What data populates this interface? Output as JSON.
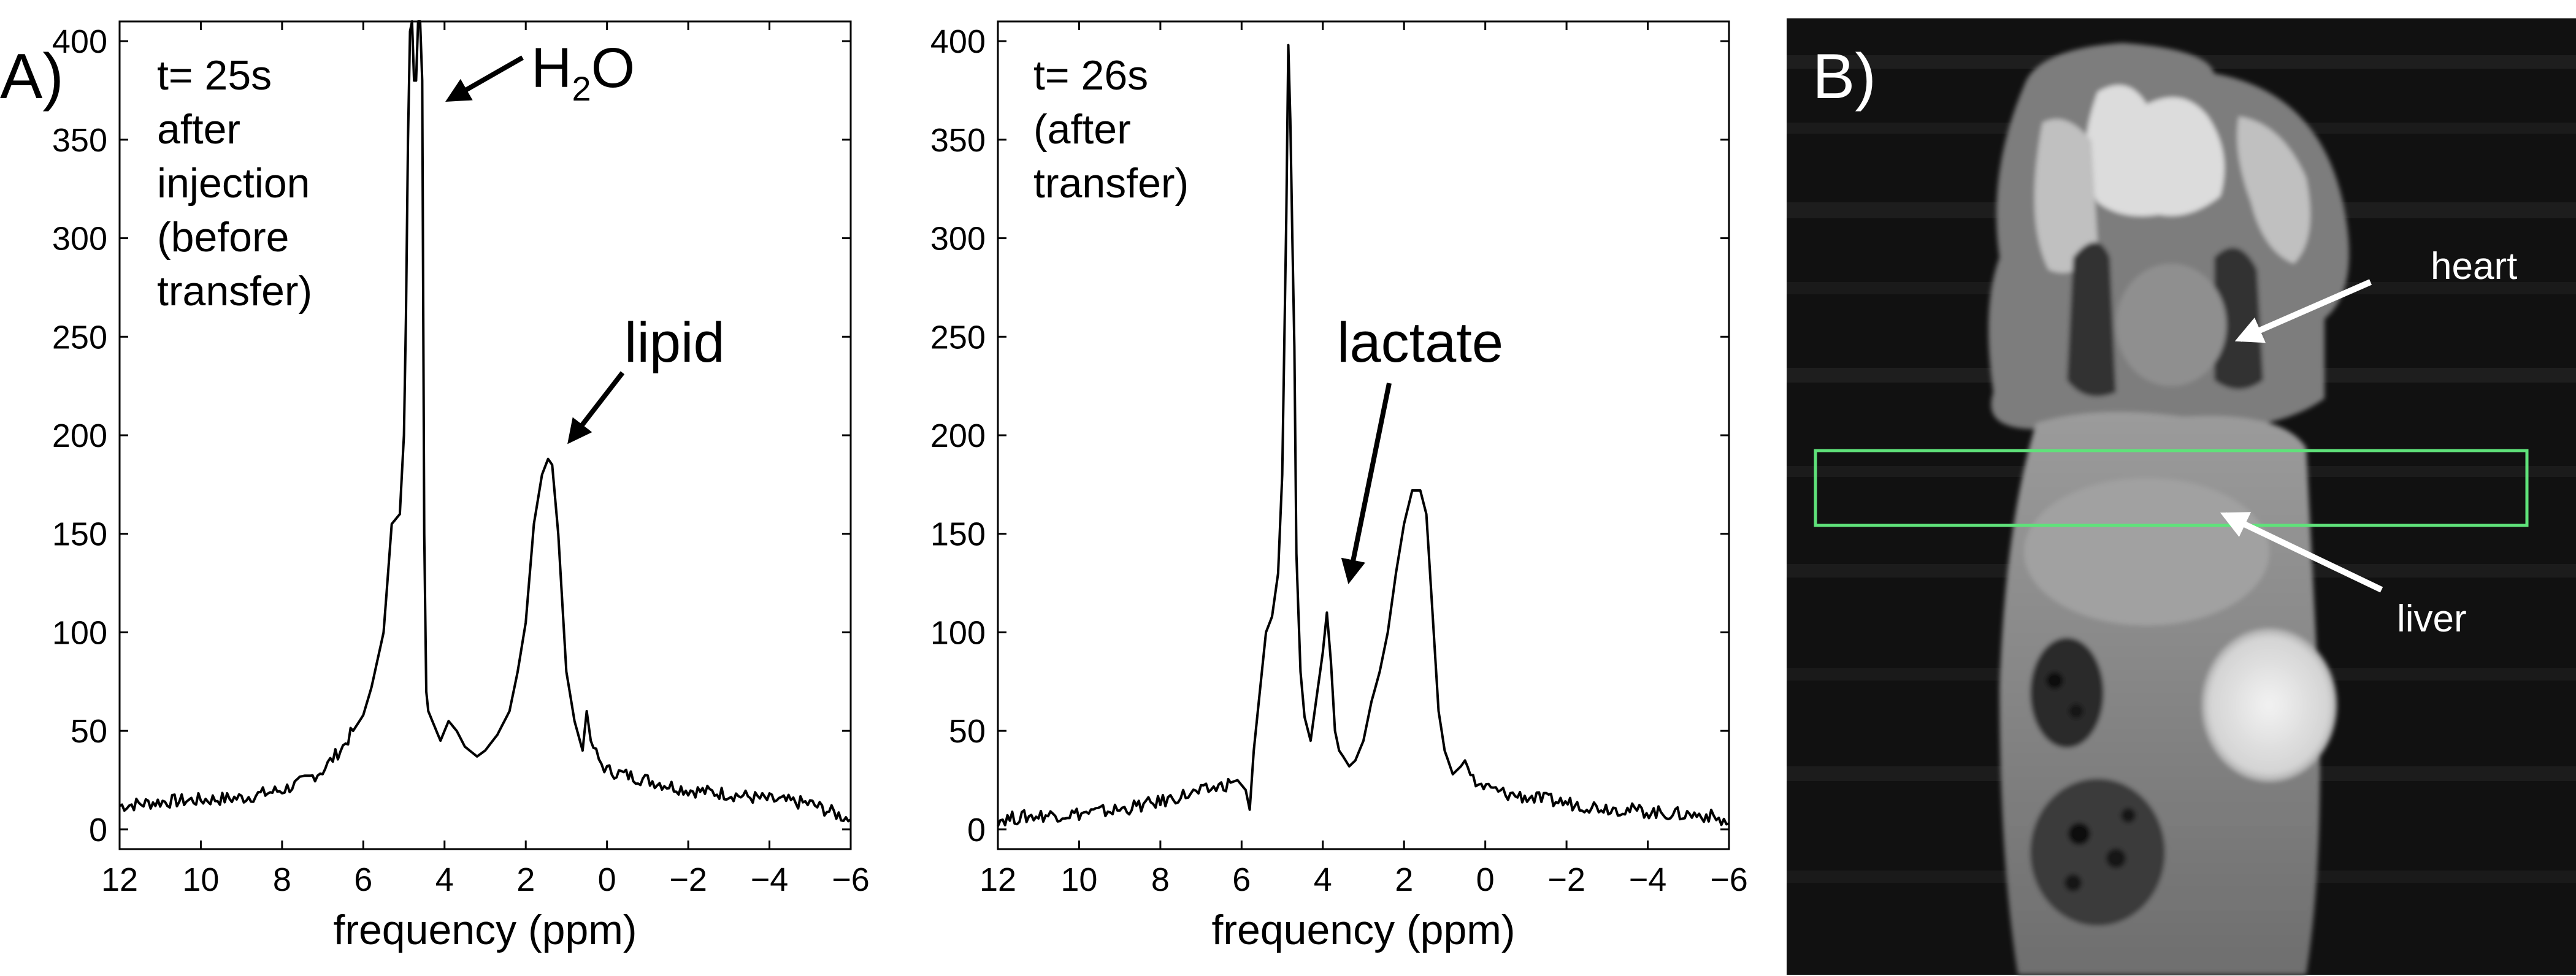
{
  "panel_a_label": "A)",
  "panel_b_label": "B)",
  "chart_data": [
    {
      "type": "line",
      "xlabel": "frequency (ppm)",
      "ylabel": "",
      "xlim": [
        12,
        -6
      ],
      "ylim": [
        -10,
        410
      ],
      "x_ticks": [
        12,
        10,
        8,
        6,
        4,
        2,
        0,
        -2,
        -4,
        -6
      ],
      "x_tick_labels": [
        "12",
        "10",
        "8",
        "6",
        "4",
        "2",
        "0",
        "−2",
        "−4",
        "−6"
      ],
      "y_ticks": [
        0,
        50,
        100,
        150,
        200,
        250,
        300,
        350,
        400
      ],
      "y_tick_labels": [
        "0",
        "50",
        "100",
        "150",
        "200",
        "250",
        "300",
        "350",
        "400"
      ],
      "annotation_lines": [
        "t= 25s",
        "after",
        "injection",
        "(before",
        "transfer)"
      ],
      "peak_labels": [
        {
          "text": "H",
          "sub": "2",
          "tail": "O"
        },
        {
          "text": "lipid"
        }
      ],
      "series": [
        {
          "x": [
            12,
            11,
            10,
            9,
            8,
            7.5,
            7,
            6.5,
            6,
            5.8,
            5.5,
            5.3,
            5.1,
            5.0,
            4.95,
            4.9,
            4.85,
            4.8,
            4.75,
            4.7,
            4.65,
            4.6,
            4.55,
            4.5,
            4.45,
            4.4,
            4.3,
            4.1,
            3.9,
            3.7,
            3.5,
            3.2,
            3.0,
            2.7,
            2.4,
            2.2,
            2.0,
            1.8,
            1.6,
            1.45,
            1.35,
            1.2,
            1.0,
            0.8,
            0.6,
            0.5,
            0.4,
            0.2,
            0,
            -1,
            -2,
            -3,
            -4,
            -5,
            -6
          ],
          "y": [
            12,
            14,
            15,
            16,
            20,
            24,
            30,
            42,
            58,
            72,
            100,
            155,
            160,
            200,
            260,
            350,
            405,
            410,
            380,
            380,
            410,
            410,
            380,
            150,
            70,
            60,
            55,
            45,
            55,
            50,
            42,
            37,
            40,
            48,
            60,
            80,
            105,
            155,
            180,
            188,
            185,
            150,
            80,
            55,
            40,
            60,
            45,
            35,
            30,
            25,
            20,
            18,
            15,
            13,
            5
          ]
        }
      ]
    },
    {
      "type": "line",
      "xlabel": "frequency (ppm)",
      "ylabel": "",
      "xlim": [
        12,
        -6
      ],
      "ylim": [
        -10,
        410
      ],
      "x_ticks": [
        12,
        10,
        8,
        6,
        4,
        2,
        0,
        -2,
        -4,
        -6
      ],
      "x_tick_labels": [
        "12",
        "10",
        "8",
        "6",
        "4",
        "2",
        "0",
        "−2",
        "−4",
        "−6"
      ],
      "y_ticks": [
        0,
        50,
        100,
        150,
        200,
        250,
        300,
        350,
        400
      ],
      "y_tick_labels": [
        "0",
        "50",
        "100",
        "150",
        "200",
        "250",
        "300",
        "350",
        "400"
      ],
      "annotation_lines": [
        "t= 26s",
        "(after",
        "transfer)"
      ],
      "peak_labels": [
        {
          "text": "lactate"
        }
      ],
      "series": [
        {
          "x": [
            12,
            11,
            10,
            9,
            8,
            7.5,
            7,
            6.5,
            6.1,
            5.9,
            5.8,
            5.7,
            5.55,
            5.4,
            5.25,
            5.1,
            5.0,
            4.9,
            4.85,
            4.8,
            4.75,
            4.7,
            4.65,
            4.55,
            4.45,
            4.3,
            4.2,
            4.0,
            3.9,
            3.8,
            3.7,
            3.6,
            3.5,
            3.35,
            3.2,
            3.0,
            2.8,
            2.6,
            2.4,
            2.2,
            2.0,
            1.8,
            1.6,
            1.45,
            1.3,
            1.15,
            1.0,
            0.8,
            0.6,
            0.5,
            0.3,
            0.1,
            -0.5,
            -1.5,
            -2.5,
            -3.5,
            -4.5,
            -5.5,
            -6
          ],
          "y": [
            5,
            7,
            8,
            10,
            14,
            17,
            19,
            22,
            25,
            20,
            10,
            40,
            70,
            100,
            108,
            130,
            180,
            310,
            398,
            360,
            300,
            245,
            140,
            80,
            57,
            45,
            60,
            90,
            110,
            85,
            50,
            40,
            37,
            32,
            35,
            45,
            65,
            80,
            100,
            130,
            155,
            172,
            172,
            160,
            110,
            60,
            40,
            28,
            32,
            35,
            25,
            22,
            18,
            15,
            12,
            10,
            8,
            7,
            3
          ]
        }
      ]
    }
  ],
  "mri": {
    "labels": [
      "heart",
      "liver"
    ],
    "roi_color": "#5fe27a"
  }
}
